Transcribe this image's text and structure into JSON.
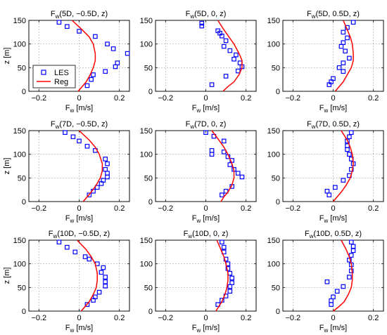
{
  "chart_data": [
    {
      "type": "scatter",
      "title": "F_w(5D, −0.5D, z)",
      "title_main": "F",
      "title_sub": "w",
      "title_rest": "(5D, −0.5D, z)",
      "xlabel_main": "F",
      "xlabel_sub": "w",
      "xlabel_rest": " [m/s]",
      "ylabel": "z [m]",
      "xlim": [
        -0.25,
        0.25
      ],
      "ylim": [
        0,
        150
      ],
      "xticks": [
        -0.2,
        0,
        0.2
      ],
      "xtick_labels": [
        "−0.2",
        "0",
        "0.2"
      ],
      "yticks": [
        0,
        50,
        100,
        150
      ],
      "ytick_labels": [
        "0",
        "50",
        "100",
        "150"
      ],
      "grid": true,
      "legend": {
        "placement": "lower-left",
        "entries": [
          {
            "label": "LES",
            "marker": "square",
            "color": "#0000ff"
          },
          {
            "label": "Reg",
            "marker": "line",
            "color": "#ff0000"
          }
        ]
      },
      "series": [
        {
          "name": "LES",
          "kind": "markers",
          "color": "#0000ff",
          "x": [
            0.04,
            0.06,
            0.07,
            0.13,
            0.18,
            0.19,
            0.24,
            0.17,
            0.14,
            0.08,
            0.0,
            -0.06,
            -0.1
          ],
          "y": [
            12,
            25,
            35,
            42,
            52,
            60,
            80,
            90,
            100,
            116,
            127,
            137,
            146
          ]
        },
        {
          "name": "Reg",
          "kind": "line",
          "color": "#ff0000",
          "x": [
            -0.005,
            0.015,
            0.035,
            0.055,
            0.07,
            0.08,
            0.08,
            0.07,
            0.05,
            0.015,
            -0.035
          ],
          "y": [
            0,
            10,
            20,
            35,
            50,
            65,
            80,
            100,
            115,
            130,
            150
          ]
        }
      ]
    },
    {
      "type": "scatter",
      "title": "F_w(5D, 0, z)",
      "title_main": "F",
      "title_sub": "w",
      "title_rest": "(5D, 0, z)",
      "xlabel_main": "F",
      "xlabel_sub": "w",
      "xlabel_rest": " [m/s]",
      "ylabel": "",
      "xlim": [
        -0.25,
        0.25
      ],
      "ylim": [
        0,
        150
      ],
      "xticks": [
        -0.2,
        0,
        0.2
      ],
      "xtick_labels": [
        "−0.2",
        "0",
        "0.2"
      ],
      "yticks": [
        0,
        50,
        100,
        150
      ],
      "ytick_labels": [
        "0",
        "50",
        "100",
        "150"
      ],
      "grid": true,
      "series": [
        {
          "name": "LES",
          "kind": "markers",
          "color": "#0000ff",
          "x": [
            0.03,
            0.1,
            0.16,
            0.18,
            0.17,
            0.14,
            0.15,
            0.12,
            0.09,
            0.1,
            0.08,
            0.07,
            0.06,
            -0.02,
            -0.02
          ],
          "y": [
            14,
            32,
            43,
            52,
            60,
            68,
            77,
            86,
            95,
            107,
            117,
            123,
            128,
            138,
            144
          ]
        },
        {
          "name": "Reg",
          "kind": "line",
          "color": "#ff0000",
          "x": [
            0.085,
            0.11,
            0.14,
            0.165,
            0.18,
            0.18,
            0.165,
            0.14,
            0.115,
            0.09,
            0.06
          ],
          "y": [
            0,
            10,
            20,
            35,
            50,
            65,
            80,
            100,
            115,
            130,
            150
          ]
        }
      ]
    },
    {
      "type": "scatter",
      "title": "F_w(5D, 0.5D, z)",
      "title_main": "F",
      "title_sub": "w",
      "title_rest": "(5D, 0.5D, z)",
      "xlabel_main": "F",
      "xlabel_sub": "w",
      "xlabel_rest": " [m/s]",
      "ylabel": "",
      "xlim": [
        -0.25,
        0.25
      ],
      "ylim": [
        0,
        150
      ],
      "xticks": [
        -0.2,
        0,
        0.2
      ],
      "xtick_labels": [
        "−0.2",
        "0",
        "0.2"
      ],
      "yticks": [
        0,
        50,
        100,
        150
      ],
      "ytick_labels": [
        "0",
        "50",
        "100",
        "150"
      ],
      "grid": true,
      "series": [
        {
          "name": "LES",
          "kind": "markers",
          "color": "#0000ff",
          "x": [
            -0.02,
            -0.01,
            0.0,
            0.05,
            0.03,
            0.05,
            0.08,
            0.06,
            0.04,
            0.05,
            0.07,
            0.05,
            0.07,
            0.1
          ],
          "y": [
            14,
            20,
            27,
            42,
            50,
            60,
            70,
            85,
            95,
            103,
            113,
            125,
            135,
            146
          ]
        },
        {
          "name": "Reg",
          "kind": "line",
          "color": "#ff0000",
          "x": [
            0.01,
            0.03,
            0.05,
            0.07,
            0.09,
            0.1,
            0.1,
            0.095,
            0.085,
            0.07,
            0.05
          ],
          "y": [
            0,
            10,
            20,
            35,
            50,
            65,
            80,
            100,
            115,
            130,
            150
          ]
        }
      ]
    },
    {
      "type": "scatter",
      "title": "F_w(7D, −0.5D, z)",
      "title_main": "F",
      "title_sub": "w",
      "title_rest": "(7D, −0.5D, z)",
      "xlabel_main": "F",
      "xlabel_sub": "w",
      "xlabel_rest": " [m/s]",
      "ylabel": "z [m]",
      "xlim": [
        -0.25,
        0.25
      ],
      "ylim": [
        0,
        150
      ],
      "xticks": [
        -0.2,
        0,
        0.2
      ],
      "xtick_labels": [
        "−0.2",
        "0",
        "0.2"
      ],
      "yticks": [
        0,
        50,
        100,
        150
      ],
      "ytick_labels": [
        "0",
        "50",
        "100",
        "150"
      ],
      "grid": true,
      "series": [
        {
          "name": "LES",
          "kind": "markers",
          "color": "#0000ff",
          "x": [
            0.05,
            0.07,
            0.09,
            0.11,
            0.12,
            0.14,
            0.14,
            0.13,
            0.14,
            0.13,
            0.08,
            0.04,
            0.0,
            -0.03,
            -0.07
          ],
          "y": [
            14,
            22,
            30,
            38,
            45,
            52,
            60,
            68,
            80,
            90,
            108,
            117,
            128,
            137,
            146
          ]
        },
        {
          "name": "Reg",
          "kind": "line",
          "color": "#ff0000",
          "x": [
            0.02,
            0.04,
            0.06,
            0.085,
            0.105,
            0.115,
            0.115,
            0.1,
            0.08,
            0.05,
            0.0
          ],
          "y": [
            0,
            10,
            20,
            35,
            50,
            65,
            80,
            100,
            115,
            130,
            150
          ]
        }
      ]
    },
    {
      "type": "scatter",
      "title": "F_w(7D, 0, z)",
      "title_main": "F",
      "title_sub": "w",
      "title_rest": "(7D, 0, z)",
      "xlabel_main": "F",
      "xlabel_sub": "w",
      "xlabel_rest": " [m/s]",
      "ylabel": "",
      "xlim": [
        -0.25,
        0.25
      ],
      "ylim": [
        0,
        150
      ],
      "xticks": [
        -0.2,
        0,
        0.2
      ],
      "xtick_labels": [
        "−0.2",
        "0",
        "0.2"
      ],
      "yticks": [
        0,
        50,
        100,
        150
      ],
      "ytick_labels": [
        "0",
        "50",
        "100",
        "150"
      ],
      "grid": true,
      "series": [
        {
          "name": "LES",
          "kind": "markers",
          "color": "#0000ff",
          "x": [
            0.08,
            0.1,
            0.13,
            0.18,
            0.16,
            0.14,
            0.12,
            0.13,
            0.11,
            0.09,
            0.03,
            0.03,
            0.09,
            0.04,
            0.0
          ],
          "y": [
            14,
            22,
            32,
            52,
            60,
            68,
            78,
            87,
            95,
            105,
            108,
            100,
            128,
            138,
            146
          ]
        },
        {
          "name": "Reg",
          "kind": "line",
          "color": "#ff0000",
          "x": [
            0.075,
            0.09,
            0.11,
            0.13,
            0.14,
            0.14,
            0.13,
            0.11,
            0.09,
            0.065,
            0.03
          ],
          "y": [
            0,
            10,
            20,
            35,
            50,
            65,
            80,
            100,
            115,
            130,
            150
          ]
        }
      ]
    },
    {
      "type": "scatter",
      "title": "F_w(7D, 0.5D, z)",
      "title_main": "F",
      "title_sub": "w",
      "title_rest": "(7D, 0.5D, z)",
      "xlabel_main": "F",
      "xlabel_sub": "w",
      "xlabel_rest": " [m/s]",
      "ylabel": "",
      "xlim": [
        -0.25,
        0.25
      ],
      "ylim": [
        0,
        150
      ],
      "xticks": [
        -0.2,
        0,
        0.2
      ],
      "xtick_labels": [
        "−0.2",
        "0",
        "0.2"
      ],
      "yticks": [
        0,
        50,
        100,
        150
      ],
      "ytick_labels": [
        "0",
        "50",
        "100",
        "150"
      ],
      "grid": true,
      "series": [
        {
          "name": "LES",
          "kind": "markers",
          "color": "#0000ff",
          "x": [
            -0.02,
            -0.03,
            0.01,
            0.05,
            0.08,
            0.09,
            0.1,
            0.09,
            0.08,
            0.07,
            0.07,
            0.07,
            0.08,
            0.09
          ],
          "y": [
            14,
            22,
            30,
            45,
            55,
            68,
            80,
            90,
            100,
            110,
            118,
            128,
            137,
            146
          ]
        },
        {
          "name": "Reg",
          "kind": "line",
          "color": "#ff0000",
          "x": [
            0.0,
            0.02,
            0.04,
            0.065,
            0.085,
            0.095,
            0.1,
            0.095,
            0.085,
            0.07,
            0.04
          ],
          "y": [
            0,
            10,
            20,
            35,
            50,
            65,
            80,
            100,
            115,
            130,
            150
          ]
        }
      ]
    },
    {
      "type": "scatter",
      "title": "F_w(10D, −0.5D, z)",
      "title_main": "F",
      "title_sub": "w",
      "title_rest": "(10D, −0.5D, z)",
      "xlabel_main": "F",
      "xlabel_sub": "w",
      "xlabel_rest": " [m/s]",
      "ylabel": "z [m]",
      "xlim": [
        -0.25,
        0.25
      ],
      "ylim": [
        0,
        150
      ],
      "xticks": [
        -0.2,
        0,
        0.2
      ],
      "xtick_labels": [
        "−0.2",
        "0",
        "0.2"
      ],
      "yticks": [
        0,
        50,
        100,
        150
      ],
      "ytick_labels": [
        "0",
        "50",
        "100",
        "150"
      ],
      "grid": true,
      "series": [
        {
          "name": "LES",
          "kind": "markers",
          "color": "#0000ff",
          "x": [
            0.04,
            0.07,
            0.08,
            0.1,
            0.13,
            0.13,
            0.13,
            0.11,
            0.12,
            0.09,
            0.05,
            0.03,
            -0.02,
            -0.06,
            -0.1
          ],
          "y": [
            14,
            23,
            30,
            40,
            53,
            62,
            72,
            82,
            92,
            100,
            110,
            115,
            125,
            135,
            146
          ]
        },
        {
          "name": "Reg",
          "kind": "line",
          "color": "#ff0000",
          "x": [
            0.01,
            0.03,
            0.05,
            0.07,
            0.085,
            0.09,
            0.09,
            0.08,
            0.06,
            0.035,
            -0.01
          ],
          "y": [
            0,
            10,
            20,
            35,
            50,
            65,
            80,
            100,
            115,
            130,
            150
          ]
        }
      ]
    },
    {
      "type": "scatter",
      "title": "F_w(10D, 0, z)",
      "title_main": "F",
      "title_sub": "w",
      "title_rest": "(10D, 0, z)",
      "xlabel_main": "F",
      "xlabel_sub": "w",
      "xlabel_rest": " [m/s]",
      "ylabel": "",
      "xlim": [
        -0.25,
        0.25
      ],
      "ylim": [
        0,
        150
      ],
      "xticks": [
        -0.2,
        0,
        0.2
      ],
      "xtick_labels": [
        "−0.2",
        "0",
        "0.2"
      ],
      "yticks": [
        0,
        50,
        100,
        150
      ],
      "ytick_labels": [
        "0",
        "50",
        "100",
        "150"
      ],
      "grid": true,
      "series": [
        {
          "name": "LES",
          "kind": "markers",
          "color": "#0000ff",
          "x": [
            0.06,
            0.08,
            0.1,
            0.12,
            0.12,
            0.13,
            0.13,
            0.12,
            0.11,
            0.11,
            0.1,
            0.09,
            0.09,
            0.08
          ],
          "y": [
            14,
            23,
            32,
            42,
            52,
            60,
            70,
            80,
            90,
            100,
            110,
            125,
            135,
            146
          ]
        },
        {
          "name": "Reg",
          "kind": "line",
          "color": "#ff0000",
          "x": [
            0.05,
            0.065,
            0.08,
            0.095,
            0.105,
            0.11,
            0.11,
            0.1,
            0.09,
            0.075,
            0.055
          ],
          "y": [
            0,
            10,
            20,
            35,
            50,
            65,
            80,
            100,
            115,
            130,
            150
          ]
        }
      ]
    },
    {
      "type": "scatter",
      "title": "F_w(10D, 0.5D, z)",
      "title_main": "F",
      "title_sub": "w",
      "title_rest": "(10D, 0.5D, z)",
      "xlabel_main": "F",
      "xlabel_sub": "w",
      "xlabel_rest": " [m/s]",
      "ylabel": "",
      "xlim": [
        -0.25,
        0.25
      ],
      "ylim": [
        0,
        150
      ],
      "xticks": [
        -0.2,
        0,
        0.2
      ],
      "xtick_labels": [
        "−0.2",
        "0",
        "0.2"
      ],
      "yticks": [
        0,
        50,
        100,
        150
      ],
      "ytick_labels": [
        "0",
        "50",
        "100",
        "150"
      ],
      "grid": true,
      "series": [
        {
          "name": "LES",
          "kind": "markers",
          "color": "#0000ff",
          "x": [
            -0.01,
            -0.01,
            0.0,
            0.02,
            -0.03,
            0.05,
            0.08,
            0.09,
            0.09,
            0.08,
            0.09,
            0.1,
            0.1,
            0.09
          ],
          "y": [
            14,
            22,
            30,
            42,
            62,
            52,
            72,
            85,
            98,
            108,
            118,
            128,
            137,
            146
          ]
        },
        {
          "name": "Reg",
          "kind": "line",
          "color": "#ff0000",
          "x": [
            0.0,
            0.03,
            0.055,
            0.075,
            0.09,
            0.095,
            0.095,
            0.09,
            0.08,
            0.065,
            0.04
          ],
          "y": [
            0,
            10,
            20,
            35,
            50,
            65,
            80,
            100,
            115,
            130,
            150
          ]
        }
      ]
    }
  ]
}
